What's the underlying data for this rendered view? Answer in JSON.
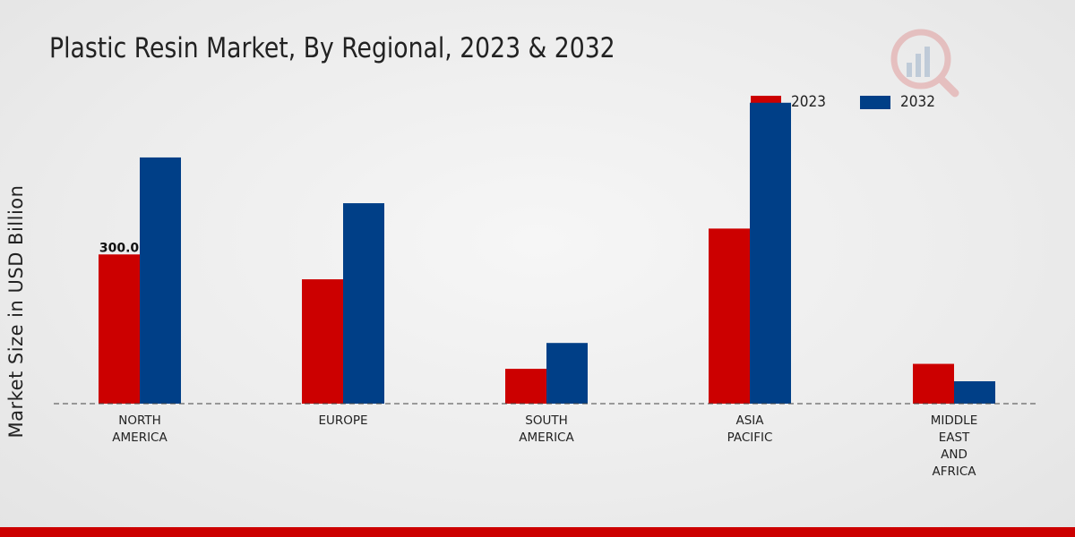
{
  "chart_data": {
    "type": "bar",
    "title": "Plastic Resin Market, By Regional, 2023 & 2032",
    "ylabel": "Market Size in USD Billion",
    "xlabel": "",
    "categories": [
      [
        "NORTH",
        "AMERICA"
      ],
      [
        "EUROPE"
      ],
      [
        "SOUTH",
        "AMERICA"
      ],
      [
        "ASIA",
        "PACIFIC"
      ],
      [
        "MIDDLE",
        "EAST",
        "AND",
        "AFRICA"
      ]
    ],
    "series": [
      {
        "name": "2023",
        "color": "#cc0000",
        "values": [
          300.0,
          250,
          70,
          352,
          80
        ]
      },
      {
        "name": "2032",
        "color": "#003f87",
        "values": [
          495,
          403,
          122,
          605,
          45
        ]
      }
    ],
    "ylim": [
      0,
      700
    ],
    "annotations": [
      {
        "series": 0,
        "index": 0,
        "text": "300.0"
      }
    ],
    "legend_position": "top-right",
    "baseline": "dashed"
  }
}
